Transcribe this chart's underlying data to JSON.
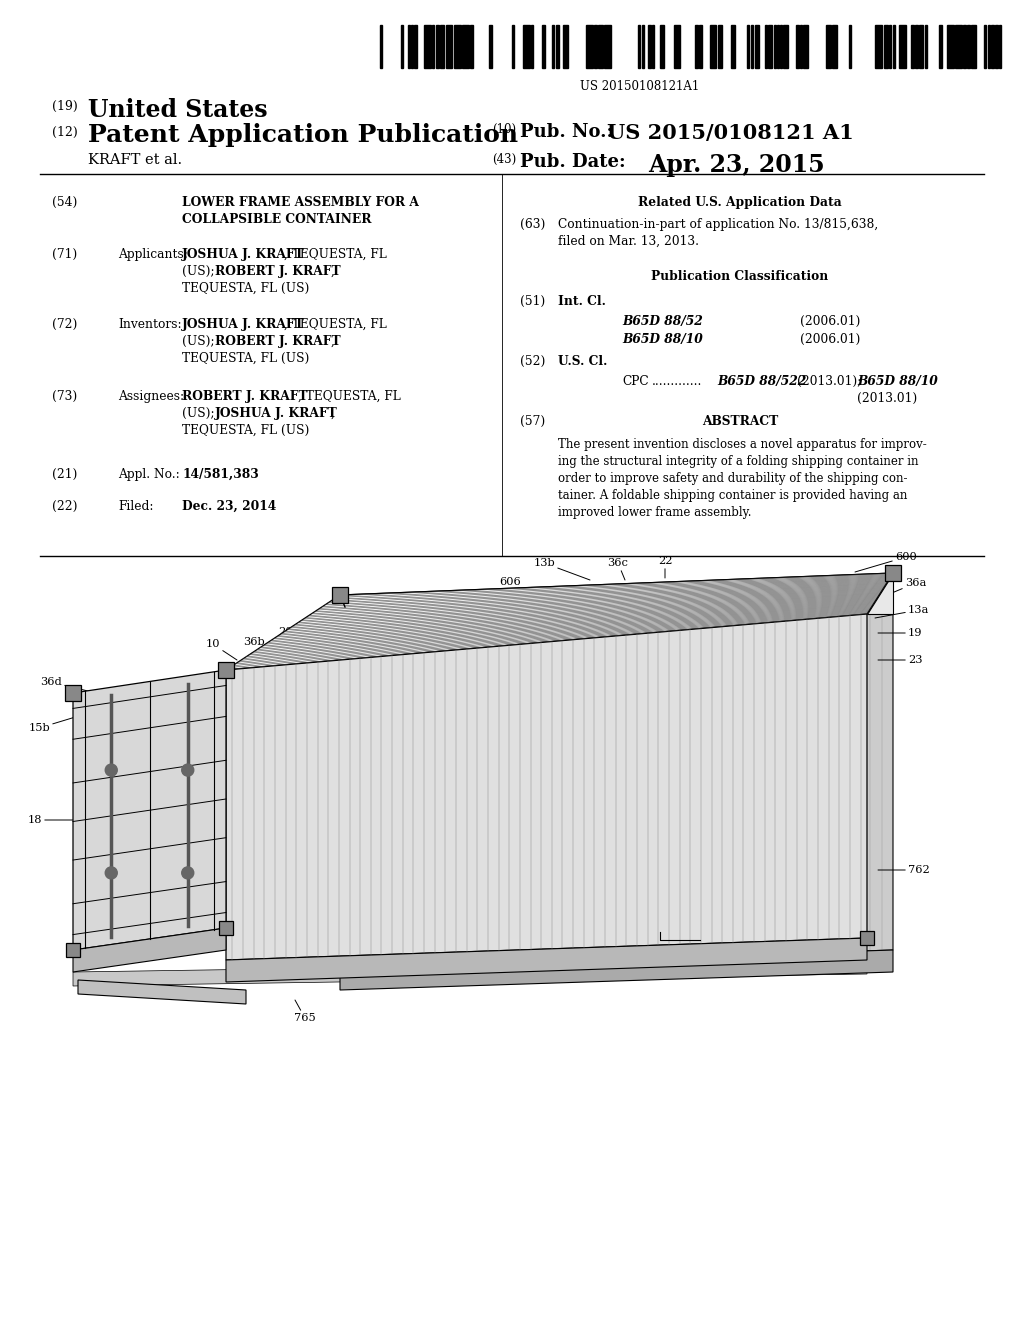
{
  "background_color": "#ffffff",
  "page_width": 10.24,
  "page_height": 13.2,
  "barcode_number": "US 20150108121A1",
  "header_country": "United States",
  "header_pub_type": "Patent Application Publication",
  "header_applicant": "KRAFT et al.",
  "header_pub_no": "US 2015/0108121 A1",
  "header_pub_date": "Apr. 23, 2015",
  "title_line1": "LOWER FRAME ASSEMBLY FOR A",
  "title_line2": "COLLAPSIBLE CONTAINER",
  "appl_name1_bold": "JOSHUA J. KRAFT",
  "appl_name1_rest": ", TEQUESTA, FL",
  "appl_line2": "(US); ",
  "appl_name2_bold": "ROBERT J. KRAFT",
  "appl_line3": "TEQUESTA, FL (US)",
  "inv_name1_bold": "JOSHUA J. KRAFT",
  "inv_name1_rest": ", TEQUESTA, FL",
  "inv_line2": "(US); ",
  "inv_name2_bold": "ROBERT J. KRAFT",
  "inv_line3": "TEQUESTA, FL (US)",
  "asgn_name1_bold": "ROBERT J. KRAFT",
  "asgn_name1_rest": ", TEQUESTA, FL",
  "asgn_line2": "(US); ",
  "asgn_name2_bold": "JOSHUA J. KRAFT",
  "asgn_line3": "TEQUESTA, FL (US)",
  "appl_no": "14/581,383",
  "filed": "Dec. 23, 2014",
  "related_header": "Related U.S. Application Data",
  "continuation_line1": "Continuation-in-part of application No. 13/815,638,",
  "continuation_line2": "filed on Mar. 13, 2013.",
  "pub_class_header": "Publication Classification",
  "int_cl_1": "B65D 88/52",
  "int_cl_1_date": "(2006.01)",
  "int_cl_2": "B65D 88/10",
  "int_cl_2_date": "(2006.01)",
  "cpc_val1": "B65D 88/522",
  "cpc_date1": "(2013.01);",
  "cpc_val2": "B65D 88/10",
  "cpc_date2": "(2013.01)",
  "abstract_header": "ABSTRACT",
  "abstract_line1": "The present invention discloses a novel apparatus for improv-",
  "abstract_line2": "ing the structural integrity of a folding shipping container in",
  "abstract_line3": "order to improve safety and durability of the shipping con-",
  "abstract_line4": "tainer. A foldable shipping container is provided having an",
  "abstract_line5": "improved lower frame assembly."
}
